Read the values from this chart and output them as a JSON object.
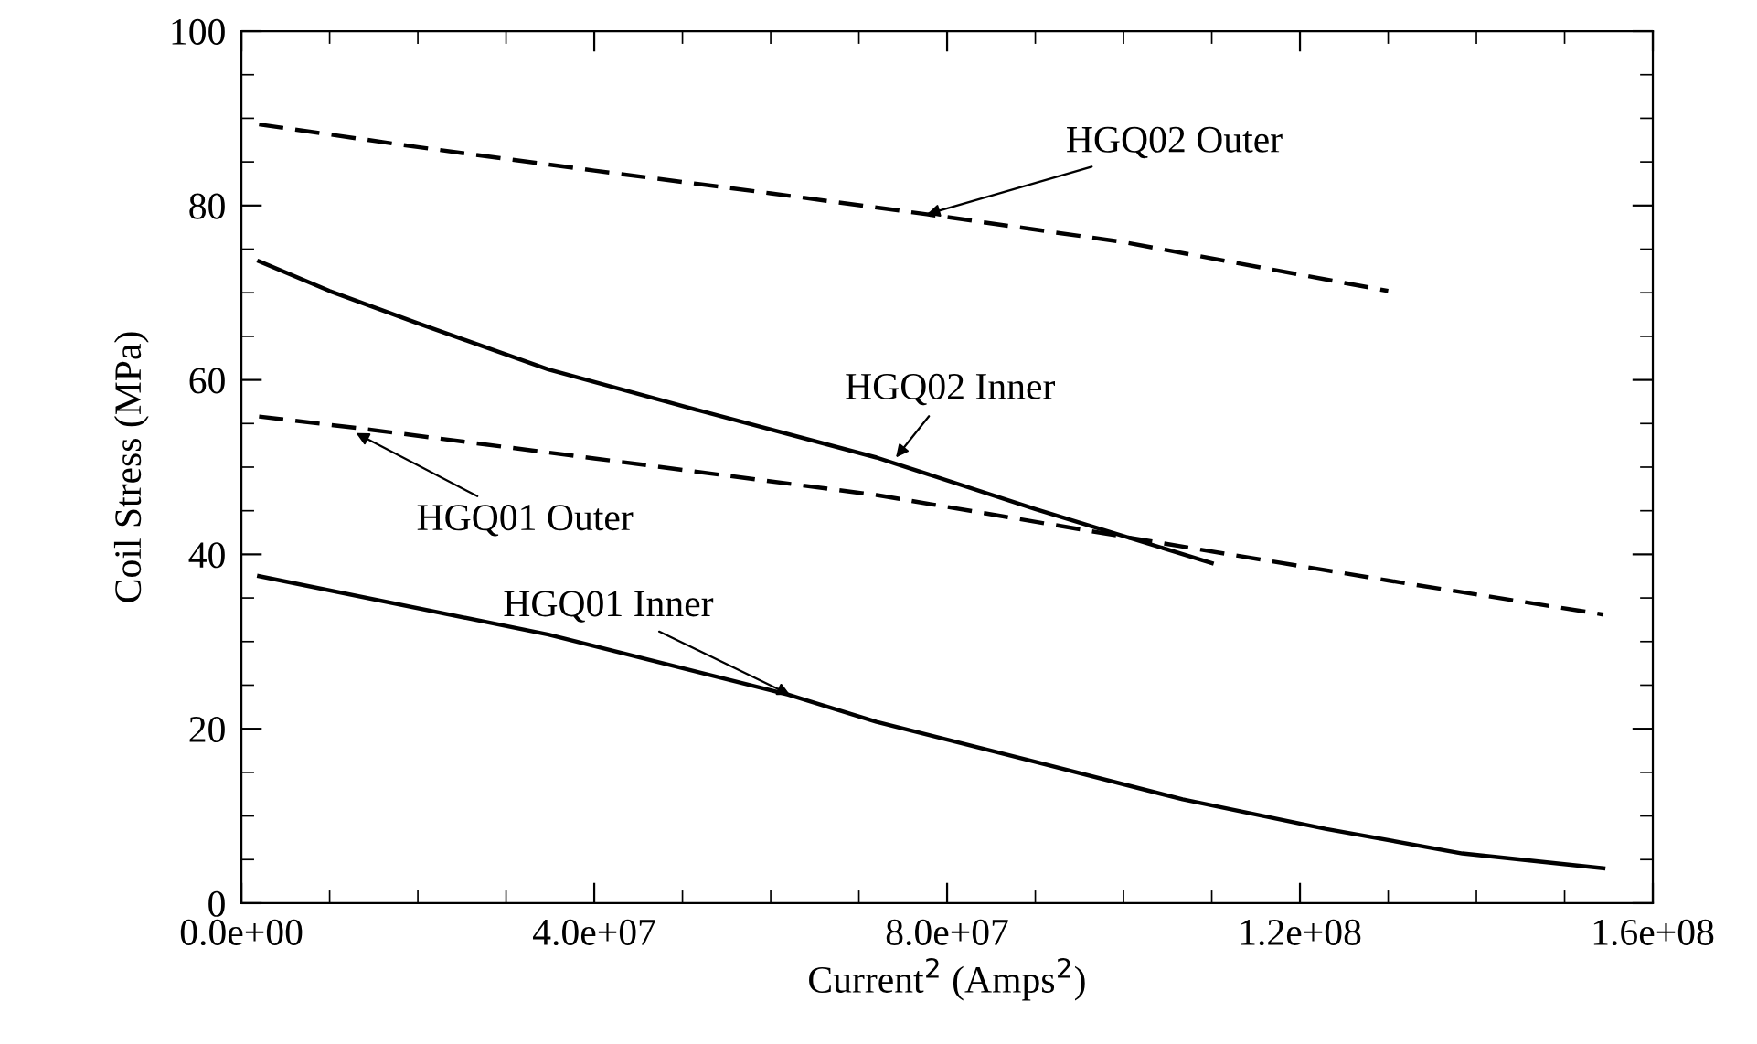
{
  "chart_data": {
    "type": "line",
    "xlabel": "Current$^{2}$ (Amps$^{2}$)",
    "ylabel": "Coil Stress (MPa)",
    "xlim": [
      0,
      160000000
    ],
    "ylim": [
      0,
      100
    ],
    "xticks": [
      {
        "value": 0,
        "label": "0.0e+00"
      },
      {
        "value": 40000000,
        "label": "4.0e+07"
      },
      {
        "value": 80000000,
        "label": "8.0e+07"
      },
      {
        "value": 120000000,
        "label": "1.2e+08"
      },
      {
        "value": 160000000,
        "label": "1.6e+08"
      }
    ],
    "yticks": [
      0,
      20,
      40,
      60,
      80,
      100
    ],
    "grid": false,
    "marker": "none",
    "series": [
      {
        "color": "#000000",
        "line_style": "dashed",
        "x": [
          2000000,
          20000000,
          40000000,
          60000000,
          77700000,
          100000000,
          130000000
        ],
        "values": [
          89.3,
          86.7,
          84.0,
          81.4,
          79.0,
          75.8,
          70.2
        ]
      },
      {
        "color": "#000000",
        "line_style": "solid",
        "x": [
          2000000,
          10000000,
          20000000,
          34800000,
          50000000,
          72000000,
          90000000,
          110000000
        ],
        "values": [
          73.6,
          70.2,
          66.5,
          61.2,
          57.0,
          51.1,
          45.2,
          39.0
        ]
      },
      {
        "color": "#000000",
        "line_style": "dashed",
        "x": [
          2000000,
          13000000,
          40000000,
          72000000,
          109000000,
          130000000,
          154400000
        ],
        "values": [
          55.8,
          54.5,
          51.0,
          46.8,
          40.5,
          37.0,
          33.1
        ]
      },
      {
        "color": "#000000",
        "line_style": "solid",
        "x": [
          2000000,
          34800000,
          62000000,
          72000000,
          90000000,
          106700000,
          123000000,
          138400000,
          154400000
        ],
        "values": [
          37.5,
          30.8,
          23.9,
          20.8,
          16.2,
          11.9,
          8.5,
          5.7,
          4.0
        ]
      }
    ],
    "annotations": [
      {
        "text": "HGQ02 Outer",
        "x": 77700000,
        "y": 79.0
      },
      {
        "text": "HGQ02 Inner",
        "x": 74200000,
        "y": 51.1
      },
      {
        "text": "HGQ01 Outer",
        "x": 13000000,
        "y": 53.9
      },
      {
        "text": "HGQ01 Inner",
        "x": 62200000,
        "y": 23.9
      }
    ]
  }
}
